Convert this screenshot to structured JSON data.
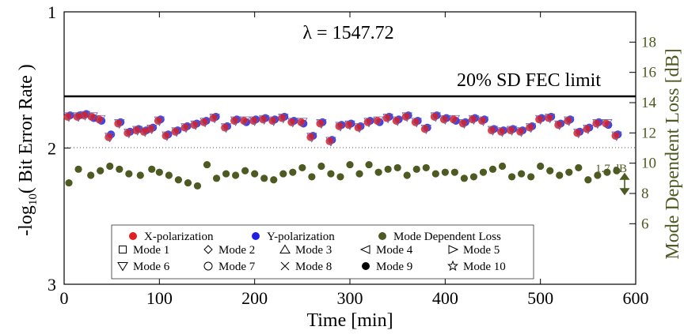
{
  "chart_data": {
    "type": "scatter",
    "title": "λ = 1547.72",
    "xlabel": "Time [min]",
    "ylabel_left": "-log10( Bit Error Rate )",
    "ylabel_right": "Mode Dependent Loss [dB]",
    "xlim": [
      0,
      600
    ],
    "ylim_left": [
      1,
      3
    ],
    "ylim_right": [
      2,
      20
    ],
    "x_ticks": [
      "0",
      "100",
      "200",
      "300",
      "400",
      "500",
      "600"
    ],
    "y_ticks_left": [
      "1",
      "2",
      "3"
    ],
    "y_ticks_right": [
      "6",
      "8",
      "10",
      "12",
      "14",
      "16",
      "18"
    ],
    "reference_lines": [
      {
        "label": "20% SD FEC limit",
        "value_log_ber": 1.62,
        "style": "solid"
      },
      {
        "label": "",
        "value_log_ber": 1.9,
        "style": "dotted"
      }
    ],
    "annotation_mdl": "1.7 dB",
    "legend": {
      "position": "bottom-center",
      "row1": [
        "X-polarization",
        "Y-polarization",
        "Mode Dependent Loss"
      ],
      "modes": [
        "Mode 1",
        "Mode 2",
        "Mode 3",
        "Mode 4",
        "Mode 5",
        "Mode 6",
        "Mode 7",
        "Mode 8",
        "Mode 9",
        "Mode 10"
      ]
    },
    "colors": {
      "x_pol": "#e02020",
      "y_pol": "#2020e0",
      "mdl": "#4d5a22",
      "axis": "#000000"
    },
    "x": [
      5,
      15,
      22,
      30,
      38,
      48,
      58,
      68,
      77,
      85,
      92,
      100,
      108,
      118,
      128,
      138,
      148,
      158,
      170,
      180,
      190,
      200,
      210,
      220,
      230,
      240,
      250,
      260,
      270,
      280,
      290,
      300,
      310,
      320,
      330,
      340,
      350,
      360,
      370,
      380,
      390,
      400,
      410,
      420,
      430,
      440,
      450,
      460,
      470,
      480,
      490,
      500,
      510,
      520,
      530,
      540,
      550,
      560,
      570,
      580
    ],
    "ber_x": [
      1.77,
      1.77,
      1.76,
      1.77,
      1.79,
      1.92,
      1.82,
      1.89,
      1.87,
      1.88,
      1.86,
      1.8,
      1.91,
      1.88,
      1.85,
      1.83,
      1.81,
      1.78,
      1.85,
      1.8,
      1.8,
      1.8,
      1.79,
      1.8,
      1.78,
      1.81,
      1.81,
      1.92,
      1.82,
      1.95,
      1.84,
      1.83,
      1.85,
      1.81,
      1.8,
      1.78,
      1.8,
      1.77,
      1.81,
      1.86,
      1.77,
      1.79,
      1.79,
      1.82,
      1.79,
      1.8,
      1.87,
      1.88,
      1.87,
      1.88,
      1.85,
      1.79,
      1.78,
      1.83,
      1.8,
      1.89,
      1.86,
      1.82,
      1.82,
      1.91
    ],
    "ber_y": [
      1.76,
      1.76,
      1.75,
      1.78,
      1.8,
      1.9,
      1.81,
      1.88,
      1.86,
      1.87,
      1.85,
      1.79,
      1.9,
      1.87,
      1.84,
      1.82,
      1.8,
      1.77,
      1.84,
      1.79,
      1.81,
      1.79,
      1.78,
      1.79,
      1.77,
      1.8,
      1.82,
      1.91,
      1.81,
      1.94,
      1.83,
      1.82,
      1.84,
      1.8,
      1.81,
      1.77,
      1.79,
      1.76,
      1.8,
      1.85,
      1.76,
      1.78,
      1.8,
      1.81,
      1.78,
      1.79,
      1.86,
      1.87,
      1.86,
      1.87,
      1.84,
      1.78,
      1.77,
      1.82,
      1.79,
      1.88,
      1.85,
      1.81,
      1.83,
      1.9
    ],
    "mdl_x": [
      5,
      15,
      28,
      38,
      48,
      58,
      68,
      80,
      92,
      100,
      110,
      120,
      130,
      140,
      150,
      160,
      170,
      180,
      190,
      200,
      210,
      220,
      230,
      240,
      250,
      260,
      270,
      280,
      290,
      300,
      310,
      320,
      330,
      340,
      350,
      360,
      370,
      380,
      390,
      400,
      410,
      420,
      430,
      440,
      450,
      460,
      470,
      480,
      490,
      500,
      510,
      520,
      530,
      540,
      550,
      560,
      570,
      580
    ],
    "mdl": [
      8.7,
      9.6,
      9.2,
      9.5,
      9.8,
      9.6,
      9.3,
      9.2,
      9.6,
      9.4,
      9.2,
      8.9,
      8.7,
      8.5,
      9.9,
      9,
      9.3,
      9.2,
      9.5,
      9.3,
      9,
      8.9,
      9.3,
      9.4,
      9.7,
      9.1,
      9.8,
      9.3,
      9.1,
      9.9,
      9.3,
      9.9,
      9.4,
      9.6,
      9.7,
      9.2,
      9.6,
      9.7,
      9.3,
      9.4,
      9.4,
      9,
      9.1,
      9.4,
      9.6,
      9.8,
      9.1,
      9.3,
      9.1,
      9.8,
      9.5,
      9.2,
      9.4,
      9.7,
      8.9,
      9.2,
      9.4,
      9.5
    ]
  }
}
